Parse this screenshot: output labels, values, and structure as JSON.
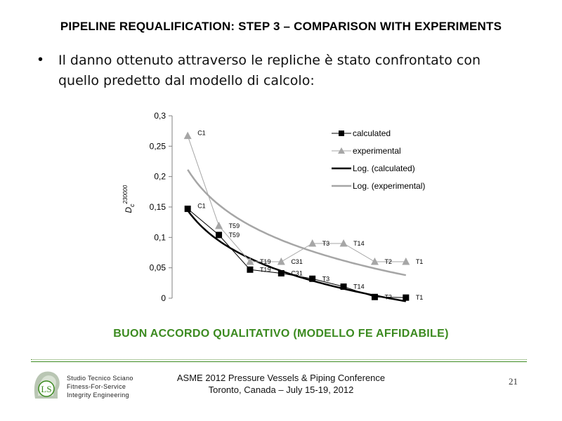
{
  "slide": {
    "title": "PIPELINE REQUALIFICATION: STEP 3 – COMPARISON WITH EXPERIMENTS",
    "bullet_text": "Il danno ottenuto attraverso le repliche è stato confrontato con quello predetto dal modello di calcolo:",
    "conclusion": "BUON ACCORDO QUALITATIVO (MODELLO FE AFFIDABILE)",
    "conclusion_color": "#3b8a1f"
  },
  "footer": {
    "company_lines": [
      "Studio Tecnico Sciano",
      "Fitness-For-Service",
      "Integrity Engineering"
    ],
    "logo_text": "LS",
    "conference_line1": "ASME 2012 Pressure Vessels & Piping Conference",
    "conference_line2": "Toronto, Canada – July 15-19, 2012",
    "page_number": "21"
  },
  "chart_data": {
    "type": "line",
    "ylabel_main": "D",
    "ylabel_sub": "c",
    "ylabel_sup": "230000",
    "ylim": [
      0,
      0.3
    ],
    "yticks": [
      "0",
      "0,05",
      "0,1",
      "0,15",
      "0,2",
      "0,25",
      "0,3"
    ],
    "grid": false,
    "legend_position": "top-right",
    "categories": [
      "C1",
      "T59",
      "T19",
      "C31",
      "T3",
      "T14",
      "T2",
      "T1"
    ],
    "series": [
      {
        "name": "calculated",
        "marker": "square",
        "color": "#000000",
        "values": [
          0.147,
          0.104,
          0.047,
          0.041,
          0.032,
          0.019,
          0.002,
          0.001
        ]
      },
      {
        "name": "experimental",
        "marker": "triangle",
        "color": "#a6a6a6",
        "values": [
          0.267,
          0.119,
          0.06,
          0.06,
          0.09,
          0.09,
          0.06,
          0.06
        ]
      }
    ],
    "trendlines": [
      {
        "name": "Log. (calculated)",
        "color": "#000000"
      },
      {
        "name": "Log. (experimental)",
        "color": "#a6a6a6"
      }
    ]
  }
}
